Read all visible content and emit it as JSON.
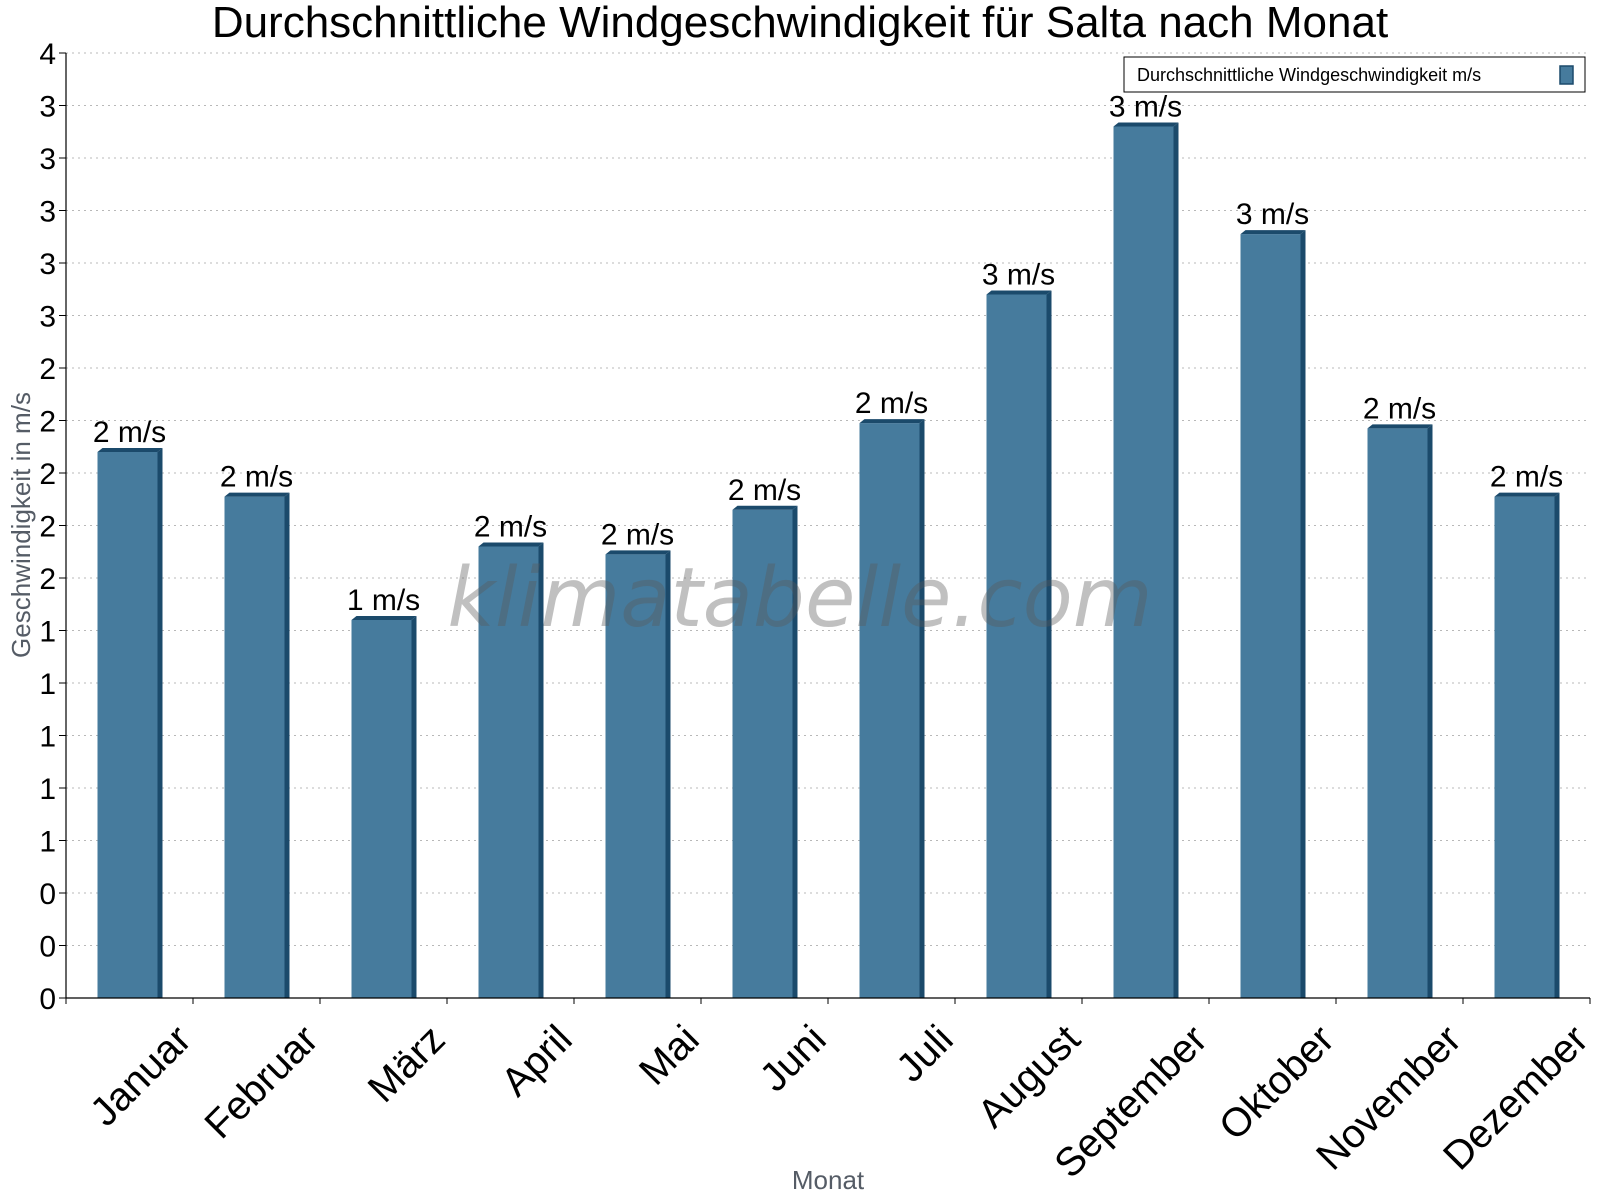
{
  "chart_data": {
    "type": "bar",
    "title": "Durchschnittliche Windgeschwindigkeit für Salta nach Monat",
    "xlabel": "Monat",
    "ylabel": "Geschwindigkeit in m/s",
    "watermark": "klimatabelle.com",
    "categories": [
      "Januar",
      "Februar",
      "März",
      "April",
      "Mai",
      "Juni",
      "Juli",
      "August",
      "September",
      "Oktober",
      "November",
      "Dezember"
    ],
    "series": [
      {
        "name": "Durchschnittliche Windgeschwindigkeit m/s",
        "values": [
          2.08,
          1.91,
          1.44,
          1.72,
          1.69,
          1.86,
          2.19,
          2.68,
          3.32,
          2.91,
          2.17,
          1.91
        ],
        "labels": [
          "2 m/s",
          "2 m/s",
          "1 m/s",
          "2 m/s",
          "2 m/s",
          "2 m/s",
          "2 m/s",
          "3 m/s",
          "3 m/s",
          "3 m/s",
          "2 m/s",
          "2 m/s"
        ],
        "color": "#467b9d",
        "edge_color": "#1b4a6b"
      }
    ],
    "ylim": [
      0,
      3.6
    ],
    "yticks": [
      0,
      0.2,
      0.4,
      0.6,
      0.8,
      1.0,
      1.2,
      1.4,
      1.6,
      1.8,
      2.0,
      2.2,
      2.4,
      2.6,
      2.8,
      3.0,
      3.2,
      3.4,
      3.6
    ],
    "ytick_labels": [
      "0",
      "0",
      "0",
      "1",
      "1",
      "1",
      "1",
      "1",
      "2",
      "2",
      "2",
      "2",
      "2",
      "3",
      "3",
      "3",
      "3",
      "3",
      "4"
    ],
    "grid": true,
    "legend_position": "top-right"
  }
}
